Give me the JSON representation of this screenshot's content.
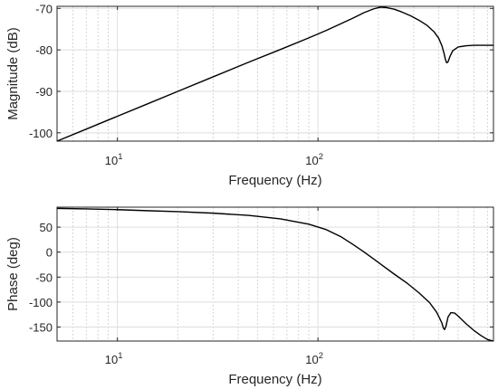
{
  "chart_data": [
    {
      "type": "line",
      "title": "",
      "xlabel": "Frequency (Hz)",
      "ylabel": "Magnitude (dB)",
      "x_scale": "log",
      "xlim": [
        5,
        750
      ],
      "ylim": [
        -102,
        -69.5
      ],
      "grid": true,
      "x_major_ticks": [
        10,
        100
      ],
      "x_tick_labels": [
        {
          "base": "10",
          "exp": "1"
        },
        {
          "base": "10",
          "exp": "2"
        }
      ],
      "y_ticks": [
        -100,
        -90,
        -80,
        -70
      ],
      "y_tick_labels": [
        "-100",
        "-90",
        "-80",
        "-70"
      ],
      "series": [
        {
          "color": "#000000",
          "x": [
            5,
            7,
            10,
            14,
            20,
            30,
            45,
            65,
            90,
            110,
            130,
            150,
            170,
            190,
            205,
            220,
            240,
            260,
            290,
            320,
            350,
            380,
            400,
            415,
            425,
            432,
            438,
            445,
            455,
            470,
            500,
            550,
            600,
            650,
            700,
            750
          ],
          "y": [
            -102.0,
            -99.1,
            -96.0,
            -93.1,
            -90.0,
            -86.5,
            -83.0,
            -79.9,
            -77.1,
            -75.3,
            -73.7,
            -72.3,
            -71.0,
            -70.1,
            -69.7,
            -69.8,
            -70.2,
            -70.8,
            -71.8,
            -72.9,
            -74.1,
            -75.7,
            -77.2,
            -79.0,
            -80.8,
            -82.3,
            -83.1,
            -82.9,
            -81.6,
            -80.2,
            -79.3,
            -79.0,
            -78.9,
            -78.9,
            -78.9,
            -78.9
          ]
        }
      ]
    },
    {
      "type": "line",
      "title": "",
      "xlabel": "Frequency (Hz)",
      "ylabel": "Phase (deg)",
      "x_scale": "log",
      "xlim": [
        5,
        750
      ],
      "ylim": [
        -178,
        90
      ],
      "grid": true,
      "x_major_ticks": [
        10,
        100
      ],
      "x_tick_labels": [
        {
          "base": "10",
          "exp": "1"
        },
        {
          "base": "10",
          "exp": "2"
        }
      ],
      "y_ticks": [
        -150,
        -100,
        -50,
        0,
        50
      ],
      "y_tick_labels": [
        "-150",
        "-100",
        "-50",
        "0",
        "50"
      ],
      "series": [
        {
          "color": "#000000",
          "x": [
            5,
            7,
            10,
            14,
            20,
            30,
            45,
            65,
            90,
            110,
            130,
            150,
            170,
            190,
            210,
            240,
            280,
            320,
            360,
            390,
            405,
            415,
            422,
            428,
            435,
            445,
            460,
            480,
            500,
            550,
            600,
            650,
            700,
            750
          ],
          "y": [
            87.5,
            86.5,
            85.0,
            83.0,
            81.0,
            78.0,
            73.5,
            66.5,
            56.0,
            45.0,
            31.0,
            15.0,
            0.0,
            -14.0,
            -27.0,
            -44.0,
            -63.0,
            -82.0,
            -101.0,
            -120.0,
            -133.0,
            -142.0,
            -152.0,
            -155.0,
            -148.0,
            -130.0,
            -121.0,
            -122.0,
            -128.0,
            -144.0,
            -157.0,
            -167.0,
            -175.0,
            -178.0
          ]
        }
      ]
    }
  ]
}
